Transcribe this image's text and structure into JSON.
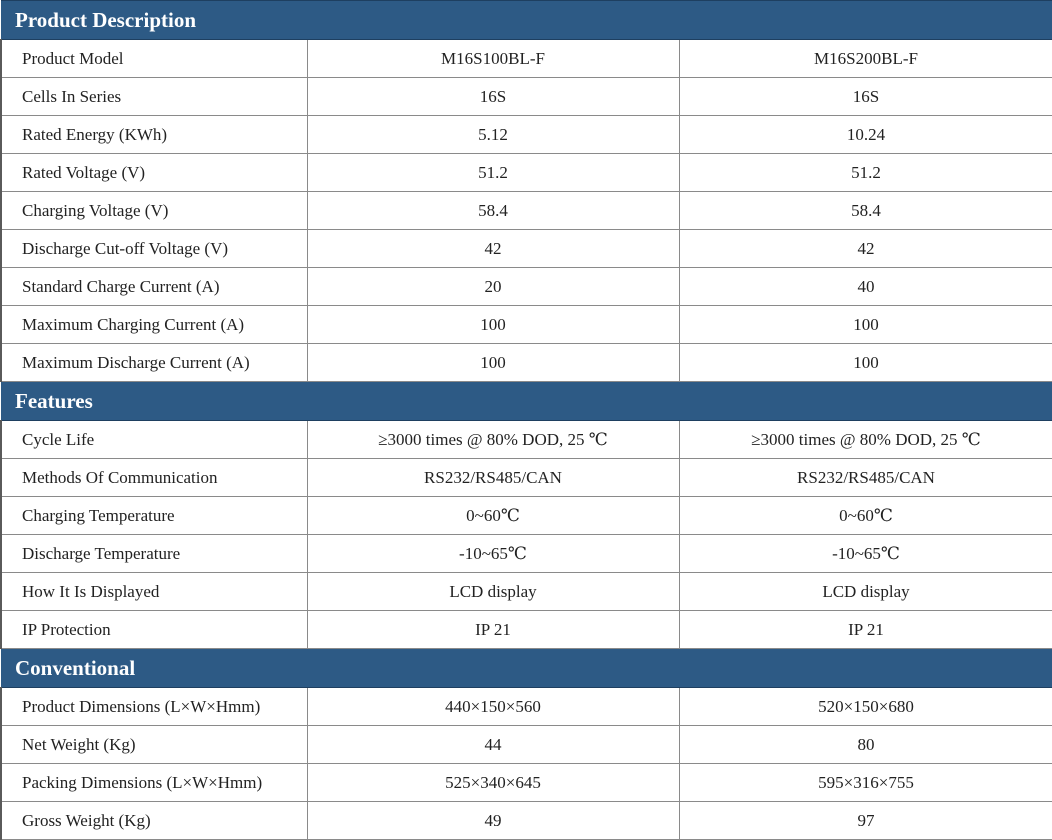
{
  "sections": [
    {
      "title": "Product Description",
      "rows": [
        {
          "label": "Product Model",
          "v1": "M16S100BL-F",
          "v2": "M16S200BL-F"
        },
        {
          "label": "Cells In Series",
          "v1": "16S",
          "v2": "16S"
        },
        {
          "label": "Rated Energy (KWh)",
          "v1": "5.12",
          "v2": "10.24"
        },
        {
          "label": "Rated Voltage (V)",
          "v1": "51.2",
          "v2": "51.2"
        },
        {
          "label": "Charging Voltage (V)",
          "v1": "58.4",
          "v2": "58.4"
        },
        {
          "label": "Discharge Cut-off Voltage (V)",
          "v1": "42",
          "v2": "42"
        },
        {
          "label": "Standard Charge Current (A)",
          "v1": "20",
          "v2": "40"
        },
        {
          "label": "Maximum Charging Current (A)",
          "v1": "100",
          "v2": "100"
        },
        {
          "label": "Maximum Discharge Current (A)",
          "v1": "100",
          "v2": "100"
        }
      ]
    },
    {
      "title": "Features",
      "rows": [
        {
          "label": "Cycle Life",
          "v1": "≥3000 times @ 80% DOD, 25 ℃",
          "v2": "≥3000 times @ 80% DOD, 25 ℃"
        },
        {
          "label": "Methods Of Communication",
          "v1": "RS232/RS485/CAN",
          "v2": "RS232/RS485/CAN"
        },
        {
          "label": "Charging Temperature",
          "v1": "0~60℃",
          "v2": "0~60℃"
        },
        {
          "label": "Discharge Temperature",
          "v1": "-10~65℃",
          "v2": "-10~65℃"
        },
        {
          "label": "How It Is Displayed",
          "v1": "LCD display",
          "v2": "LCD display"
        },
        {
          "label": "IP Protection",
          "v1": "IP 21",
          "v2": "IP 21"
        }
      ]
    },
    {
      "title": "Conventional",
      "rows": [
        {
          "label": "Product Dimensions (L×W×Hmm)",
          "v1": "440×150×560",
          "v2": "520×150×680"
        },
        {
          "label": "Net Weight (Kg)",
          "v1": "44",
          "v2": "80"
        },
        {
          "label": "Packing Dimensions (L×W×Hmm)",
          "v1": "525×340×645",
          "v2": "595×316×755"
        },
        {
          "label": "Gross Weight (Kg)",
          "v1": "49",
          "v2": "97"
        }
      ]
    }
  ]
}
